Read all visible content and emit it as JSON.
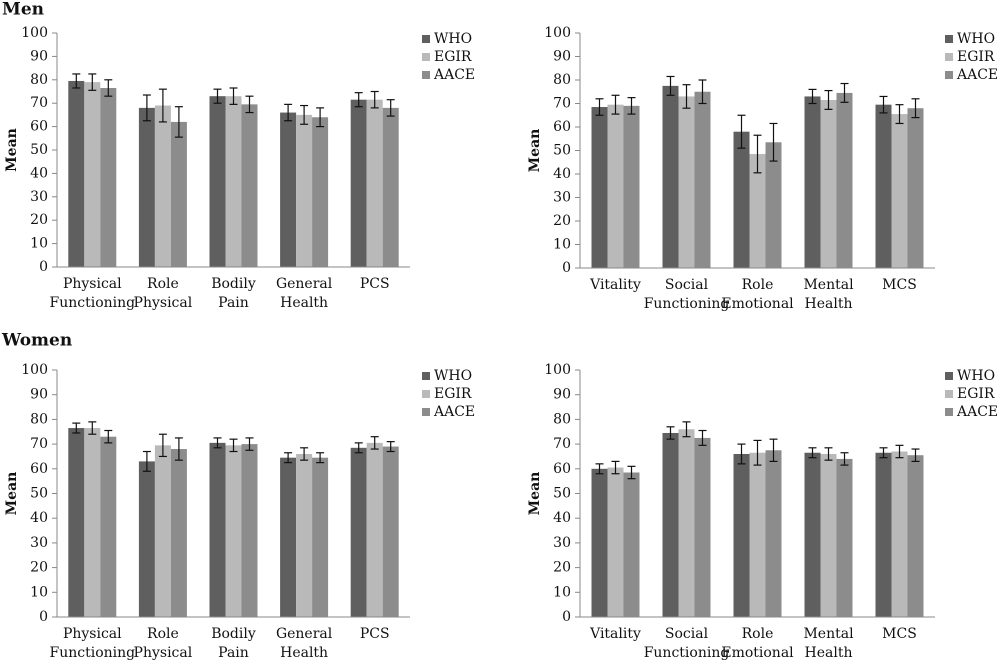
{
  "headings": [
    "Men",
    "Women"
  ],
  "chart_data": [
    {
      "type": "bar",
      "ylabel": "Mean",
      "ylim": [
        0,
        100
      ],
      "yticks": [
        0,
        10,
        20,
        30,
        40,
        50,
        60,
        70,
        80,
        90,
        100
      ],
      "categories": [
        [
          "Physical",
          "Functioning"
        ],
        [
          "Role",
          "Physical"
        ],
        [
          "Bodily",
          "Pain"
        ],
        [
          "General",
          "Health"
        ],
        [
          "PCS"
        ]
      ],
      "series": [
        {
          "name": "WHO",
          "color": "#5f5f5f",
          "values": [
            79.5,
            68,
            73,
            66,
            71.5
          ],
          "errors": [
            3,
            5.5,
            3,
            3.5,
            3
          ]
        },
        {
          "name": "EGIR",
          "color": "#b9b9b9",
          "values": [
            79,
            69,
            73,
            65,
            71.5
          ],
          "errors": [
            3.5,
            7,
            3.5,
            4,
            3.5
          ]
        },
        {
          "name": "AACE",
          "color": "#8c8c8c",
          "values": [
            76.5,
            62,
            69.5,
            64,
            68
          ],
          "errors": [
            3.5,
            6.5,
            3.5,
            4,
            3.5
          ]
        }
      ]
    },
    {
      "type": "bar",
      "ylabel": "Mean",
      "ylim": [
        0,
        100
      ],
      "yticks": [
        0,
        10,
        20,
        30,
        40,
        50,
        60,
        70,
        80,
        90,
        100
      ],
      "categories": [
        [
          "Vitality"
        ],
        [
          "Social",
          "Functioning"
        ],
        [
          "Role",
          "Emotional"
        ],
        [
          "Mental",
          "Health"
        ],
        [
          "MCS"
        ]
      ],
      "series": [
        {
          "name": "WHO",
          "color": "#5f5f5f",
          "values": [
            68.5,
            77.5,
            58,
            73,
            69.5
          ],
          "errors": [
            3.5,
            4,
            7,
            3,
            3.5
          ]
        },
        {
          "name": "EGIR",
          "color": "#b9b9b9",
          "values": [
            69.5,
            73,
            48.5,
            71.5,
            65.5
          ],
          "errors": [
            4,
            5,
            8,
            4,
            4
          ]
        },
        {
          "name": "AACE",
          "color": "#8c8c8c",
          "values": [
            69,
            75,
            53.5,
            74.5,
            68
          ],
          "errors": [
            3.5,
            5,
            8,
            4,
            4
          ]
        }
      ]
    },
    {
      "type": "bar",
      "ylabel": "Mean",
      "ylim": [
        0,
        100
      ],
      "yticks": [
        0,
        10,
        20,
        30,
        40,
        50,
        60,
        70,
        80,
        90,
        100
      ],
      "categories": [
        [
          "Physical",
          "Functioning"
        ],
        [
          "Role",
          "Physical"
        ],
        [
          "Bodily",
          "Pain"
        ],
        [
          "General",
          "Health"
        ],
        [
          "PCS"
        ]
      ],
      "series": [
        {
          "name": "WHO",
          "color": "#5f5f5f",
          "values": [
            76.5,
            63,
            70.5,
            64.5,
            68.5
          ],
          "errors": [
            2,
            4,
            2,
            2,
            2
          ]
        },
        {
          "name": "EGIR",
          "color": "#b9b9b9",
          "values": [
            76.5,
            69.5,
            69.5,
            66,
            70.5
          ],
          "errors": [
            2.5,
            4.5,
            2.5,
            2.5,
            2.5
          ]
        },
        {
          "name": "AACE",
          "color": "#8c8c8c",
          "values": [
            73,
            68,
            70,
            64.5,
            69
          ],
          "errors": [
            2.5,
            4.5,
            2.5,
            2,
            2
          ]
        }
      ]
    },
    {
      "type": "bar",
      "ylabel": "Mean",
      "ylim": [
        0,
        100
      ],
      "yticks": [
        0,
        10,
        20,
        30,
        40,
        50,
        60,
        70,
        80,
        90,
        100
      ],
      "categories": [
        [
          "Vitality"
        ],
        [
          "Social",
          "Functioning"
        ],
        [
          "Role",
          "Emotional"
        ],
        [
          "Mental",
          "Health"
        ],
        [
          "MCS"
        ]
      ],
      "series": [
        {
          "name": "WHO",
          "color": "#5f5f5f",
          "values": [
            60,
            74.5,
            66,
            66.5,
            66.5
          ],
          "errors": [
            2,
            2.5,
            4,
            2,
            2
          ]
        },
        {
          "name": "EGIR",
          "color": "#b9b9b9",
          "values": [
            60.5,
            76,
            66.5,
            66,
            67
          ],
          "errors": [
            2.5,
            3,
            5,
            2.5,
            2.5
          ]
        },
        {
          "name": "AACE",
          "color": "#8c8c8c",
          "values": [
            58.5,
            72.5,
            67.5,
            64,
            65.5
          ],
          "errors": [
            2.5,
            3,
            4.5,
            2.5,
            2.5
          ]
        }
      ]
    }
  ]
}
